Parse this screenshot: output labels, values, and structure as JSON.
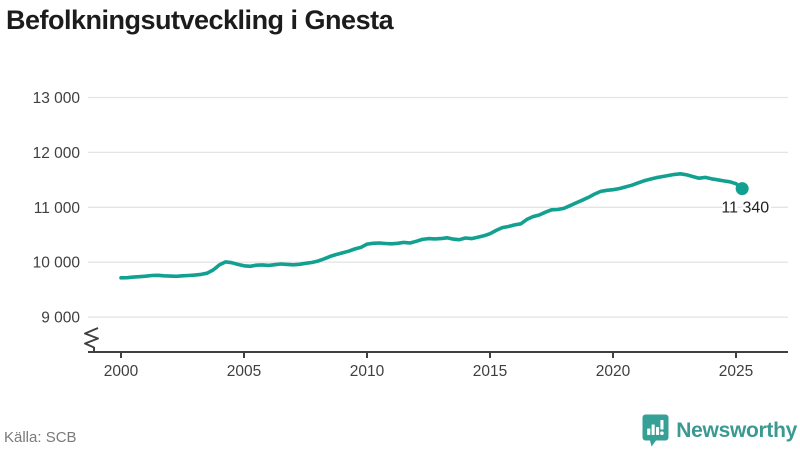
{
  "header": {
    "title": "Befolkningsutveckling i Gnesta"
  },
  "footer": {
    "source_label": "Källa: SCB",
    "brand_name": "Newsworthy",
    "brand_icon": "bar-chart-speech-bubble-icon"
  },
  "colors": {
    "line": "#12a191",
    "dot": "#12a191",
    "grid": "#e4e4e4",
    "axis": "#404040",
    "tick_label": "#3f3f3f",
    "end_label": "#222222",
    "title": "#1c1c1c",
    "source": "#7a7a7a",
    "brand_teal": "#3a9a92",
    "logo_bg": "#35a096",
    "logo_glyph": "#ffffff",
    "background": "#ffffff"
  },
  "chart_data": {
    "type": "line",
    "title": "Befolkningsutveckling i Gnesta",
    "xlabel": "",
    "ylabel": "",
    "x_ticks": [
      2000,
      2005,
      2010,
      2015,
      2020,
      2025
    ],
    "x_tick_labels": [
      "2000",
      "2005",
      "2010",
      "2015",
      "2020",
      "2025"
    ],
    "y_tick_values": [
      13000,
      12000,
      11000,
      10000,
      9000
    ],
    "y_tick_labels": [
      "13 000",
      "12 000",
      "11 000",
      "10 000",
      "9 000"
    ],
    "xlim": [
      1998.7,
      2027.2
    ],
    "ylim": [
      9000,
      13000
    ],
    "axis_break": true,
    "grid": "horizontal",
    "legend": "none",
    "end_label": "11 340",
    "end_value": 11340,
    "series": [
      {
        "name": "Befolkning",
        "x_start": 2000,
        "x_step": 0.25,
        "values": [
          9716,
          9718,
          9728,
          9735,
          9745,
          9758,
          9762,
          9752,
          9747,
          9743,
          9752,
          9758,
          9765,
          9778,
          9800,
          9860,
          9950,
          10005,
          9990,
          9960,
          9935,
          9925,
          9945,
          9950,
          9942,
          9955,
          9968,
          9960,
          9952,
          9962,
          9980,
          9995,
          10020,
          10060,
          10105,
          10140,
          10170,
          10200,
          10240,
          10270,
          10330,
          10345,
          10350,
          10340,
          10335,
          10345,
          10360,
          10350,
          10380,
          10415,
          10430,
          10425,
          10430,
          10445,
          10420,
          10410,
          10440,
          10430,
          10455,
          10480,
          10520,
          10580,
          10630,
          10650,
          10680,
          10700,
          10780,
          10830,
          10860,
          10910,
          10955,
          10960,
          10980,
          11030,
          11080,
          11130,
          11180,
          11240,
          11290,
          11310,
          11320,
          11340,
          11370,
          11400,
          11440,
          11480,
          11510,
          11540,
          11560,
          11580,
          11600,
          11610,
          11590,
          11560,
          11530,
          11545,
          11520,
          11500,
          11480,
          11465,
          11430,
          11340
        ]
      }
    ]
  }
}
